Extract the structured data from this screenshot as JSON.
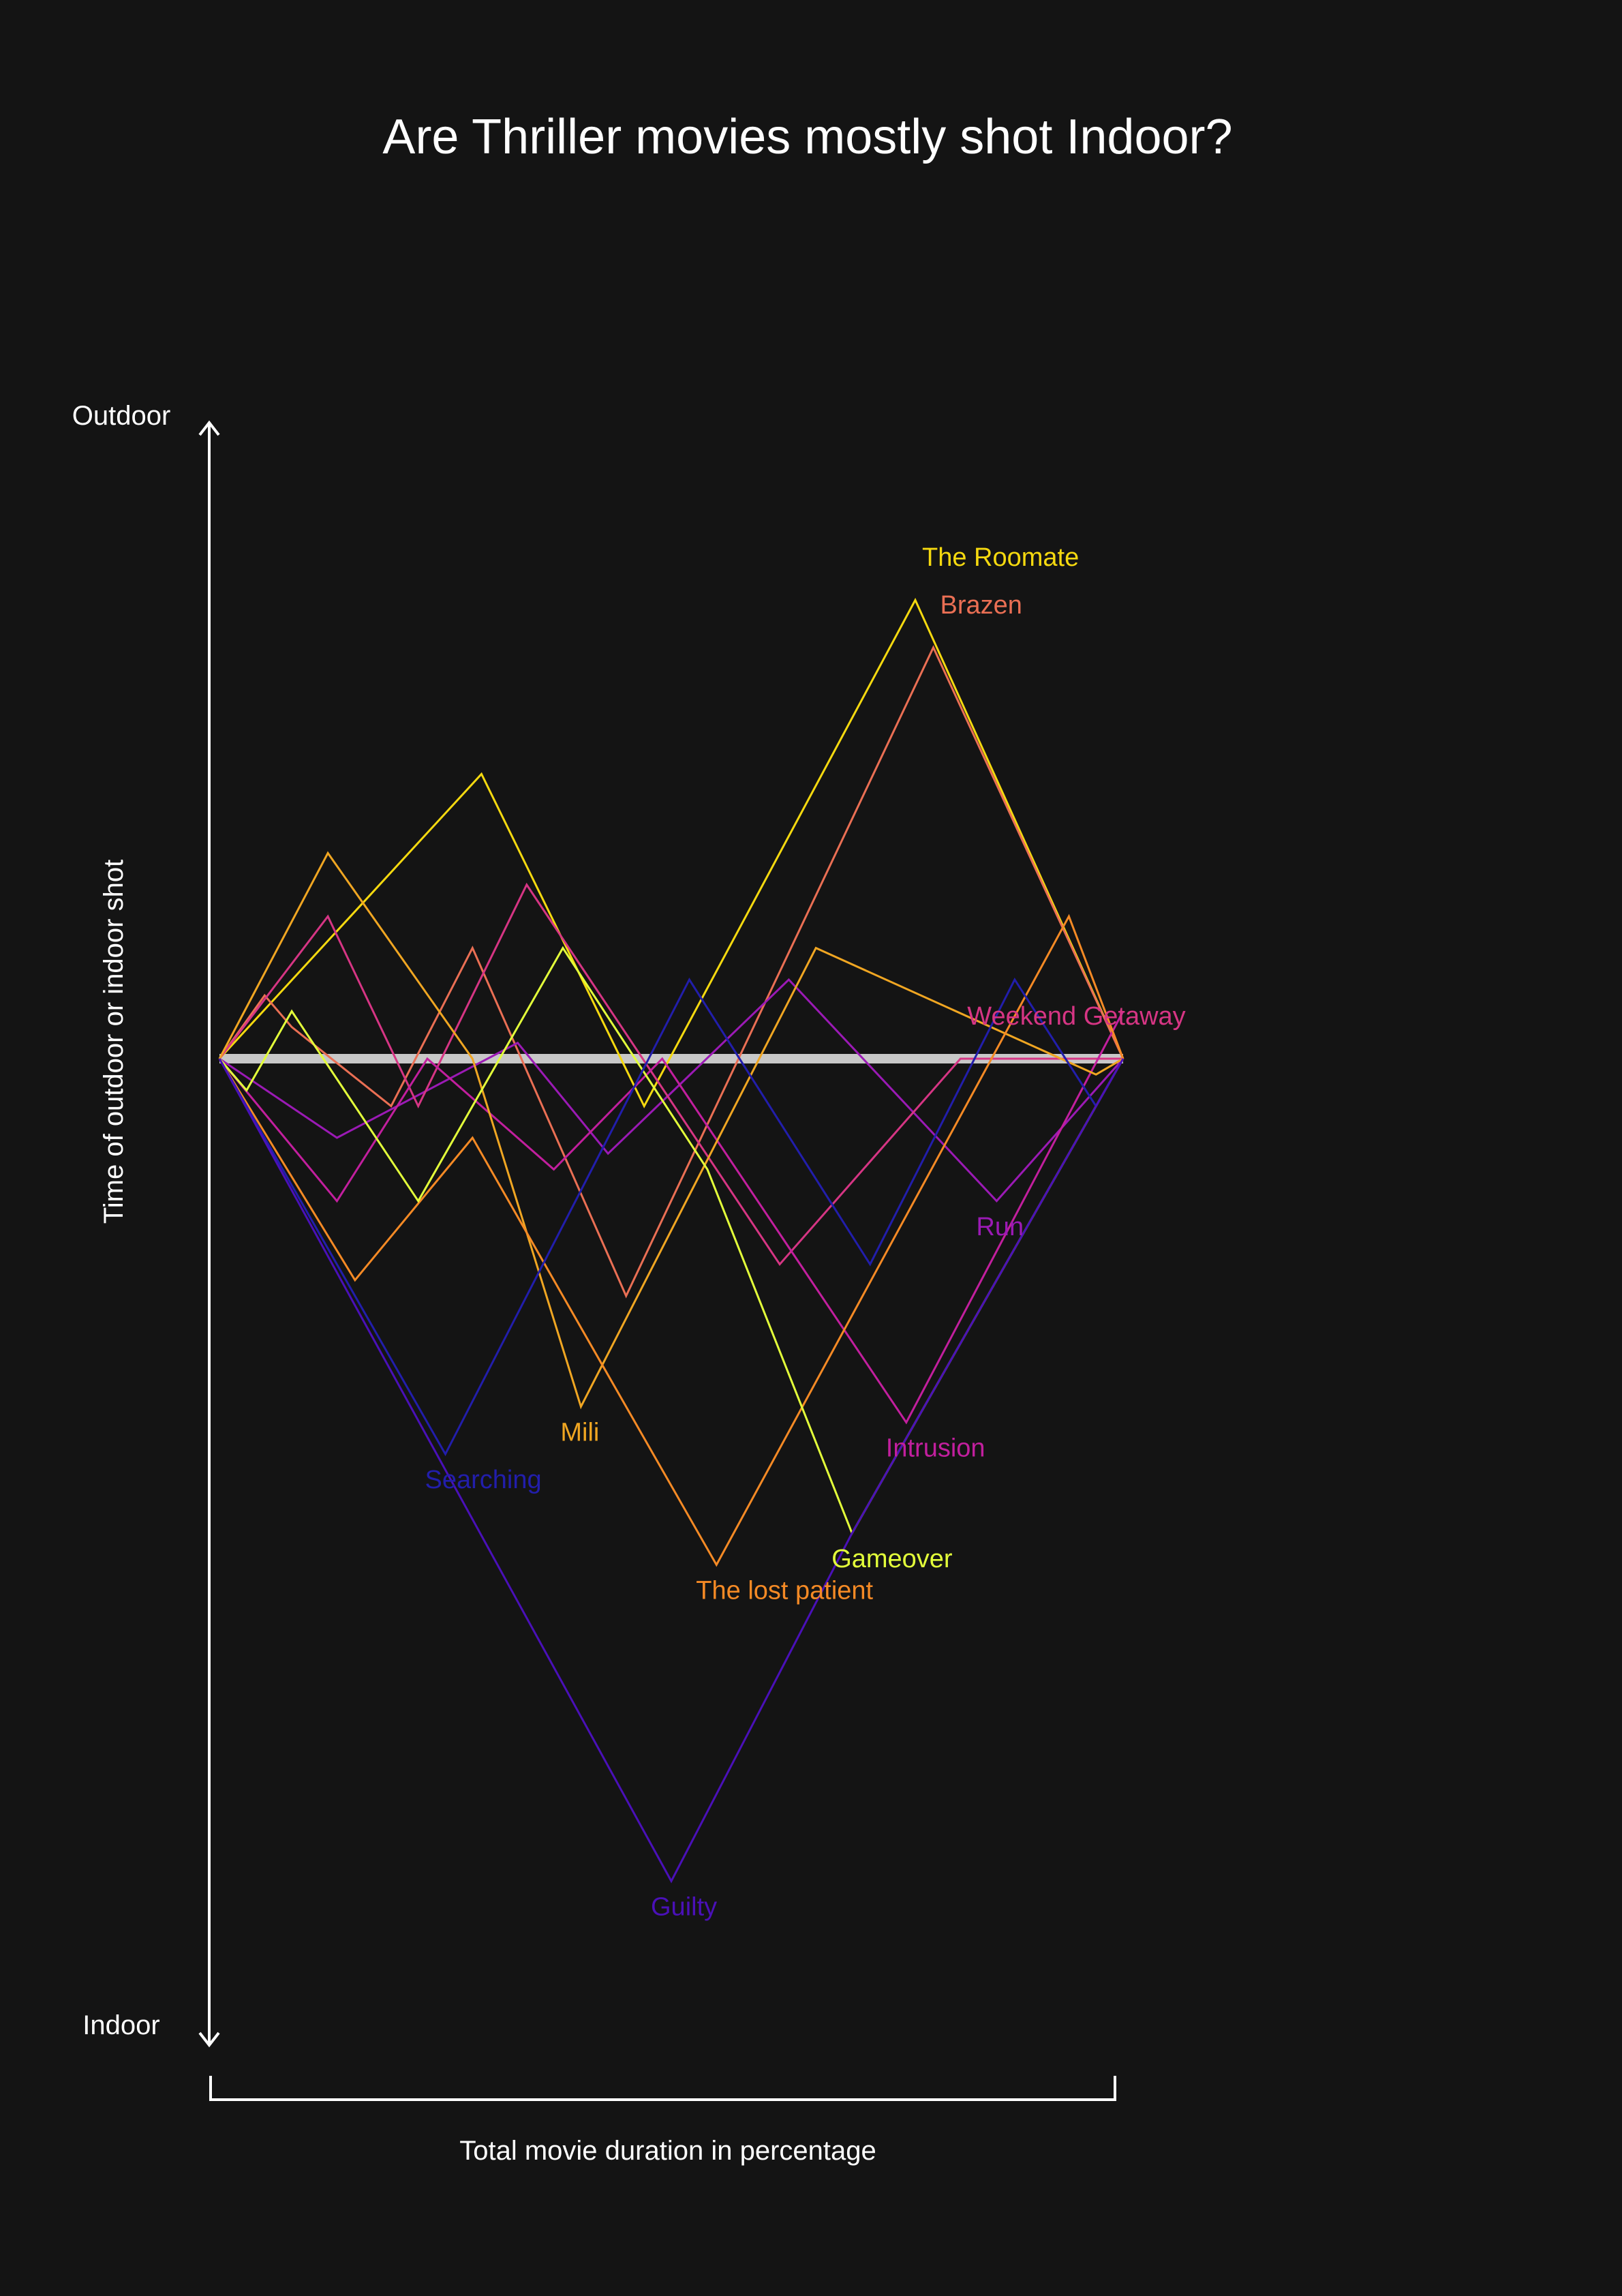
{
  "chart_data": {
    "type": "line",
    "title": "Are Thriller movies mostly shot Indoor?",
    "xlabel": "Total movie duration in percentage",
    "ylabel": "Time of outdoor or indoor shot",
    "ytop_label": "Outdoor",
    "ybottom_label": "Indoor",
    "xlim": [
      0,
      100
    ],
    "ylim": [
      -50,
      50
    ],
    "baseline": 0,
    "baseline_color": "#c8c8c8",
    "series": [
      {
        "name": "The Roomate",
        "color": "#f5d90f",
        "x": [
          0,
          29,
          47,
          77,
          100
        ],
        "y": [
          0,
          18,
          -3,
          29,
          0
        ],
        "label_at": 3
      },
      {
        "name": "Brazen",
        "color": "#ea6f54",
        "x": [
          0,
          5,
          8,
          19,
          28,
          45,
          79,
          100
        ],
        "y": [
          0,
          4,
          2,
          -3,
          7,
          -15,
          26,
          0
        ],
        "label_at": 6
      },
      {
        "name": "Run",
        "color": "#9b1ab5",
        "x": [
          0,
          13,
          33,
          43,
          63,
          86,
          100
        ],
        "y": [
          0,
          -5,
          1,
          -6,
          5,
          -9,
          0
        ],
        "label_at": 5
      },
      {
        "name": "Weekend Getaway",
        "color": "#d63584",
        "x": [
          0,
          12,
          22,
          34,
          41,
          62,
          82,
          100
        ],
        "y": [
          0,
          9,
          -3,
          11,
          5,
          -13,
          0,
          0
        ],
        "label_at": 6
      },
      {
        "name": "Intrusion",
        "color": "#c21f9e",
        "x": [
          0,
          13,
          23,
          37,
          49,
          76,
          100
        ],
        "y": [
          0,
          -9,
          0,
          -7,
          0,
          -23,
          3
        ],
        "label_at": 5
      },
      {
        "name": "Mili",
        "color": "#f0a622",
        "x": [
          0,
          12,
          28,
          40,
          66,
          97,
          100
        ],
        "y": [
          0,
          13,
          0,
          -22,
          7,
          -1,
          0
        ],
        "label_at": 3
      },
      {
        "name": "The lost patient",
        "color": "#f58a25",
        "x": [
          0,
          15,
          28,
          55,
          94,
          100
        ],
        "y": [
          0,
          -14,
          -5,
          -32,
          9,
          0
        ],
        "label_at": 3
      },
      {
        "name": "Gameover",
        "color": "#e3ff3a",
        "x": [
          0,
          3,
          8,
          22,
          38,
          54,
          70,
          100
        ],
        "y": [
          0,
          -2,
          3,
          -9,
          7,
          -7,
          -30,
          0
        ],
        "label_at": 6
      },
      {
        "name": "Searching",
        "color": "#221eab",
        "x": [
          0,
          25,
          52,
          72,
          88,
          97,
          100
        ],
        "y": [
          0,
          -25,
          5,
          -13,
          5,
          -3,
          0
        ],
        "label_at": 1
      },
      {
        "name": "Guilty",
        "color": "#4a10b8",
        "x": [
          0,
          50,
          70,
          100
        ],
        "y": [
          0,
          -52,
          -30,
          0
        ],
        "label_at": 1
      }
    ]
  }
}
